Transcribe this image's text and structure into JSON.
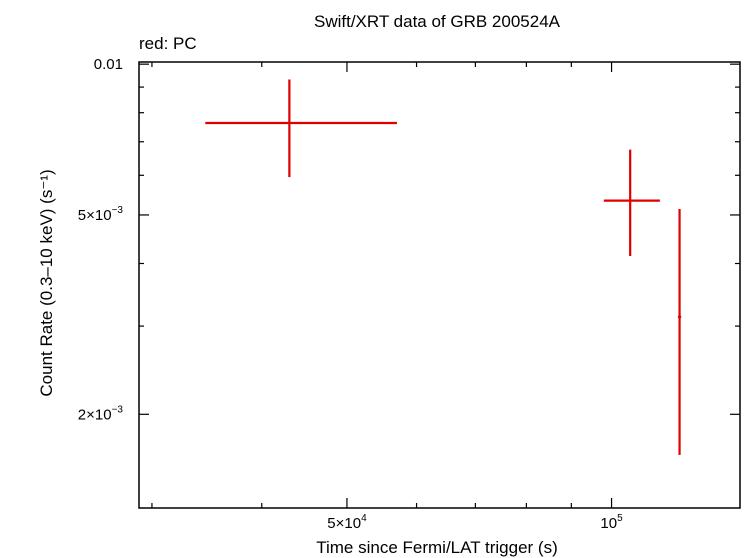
{
  "chart_data": {
    "type": "scatter",
    "title": "Swift/XRT data of GRB 200524A",
    "subtitle": "red: PC",
    "xlabel": "Time since Fermi/LAT trigger (s)",
    "ylabel": "Count Rate (0.3–10 keV) (s⁻¹)",
    "xscale": "log",
    "yscale": "log",
    "xlim": [
      29000,
      140000
    ],
    "ylim": [
      0.0013,
      0.0101
    ],
    "grid": false,
    "x_ticks": [
      {
        "value": 50000,
        "mantissa": "5×10",
        "exponent": "4"
      },
      {
        "value": 100000,
        "mantissa": "10",
        "exponent": "5"
      }
    ],
    "y_ticks": [
      {
        "value": 0.01,
        "mantissa": "0.01",
        "exponent": ""
      },
      {
        "value": 0.005,
        "mantissa": "5×10",
        "exponent": "−3"
      },
      {
        "value": 0.002,
        "mantissa": "2×10",
        "exponent": "−3"
      }
    ],
    "series": [
      {
        "color": "#e00000",
        "points": [
          {
            "x": 43000,
            "x_lo": 34500,
            "x_hi": 57000,
            "y": 0.00763,
            "y_lo": 0.00595,
            "y_hi": 0.00932
          },
          {
            "x": 105000,
            "x_lo": 98000,
            "x_hi": 113500,
            "y": 0.00534,
            "y_lo": 0.00414,
            "y_hi": 0.00675
          },
          {
            "x": 119500,
            "x_lo": 119000,
            "x_hi": 120000,
            "y": 0.00313,
            "y_lo": 0.00166,
            "y_hi": 0.00514
          }
        ]
      }
    ]
  }
}
